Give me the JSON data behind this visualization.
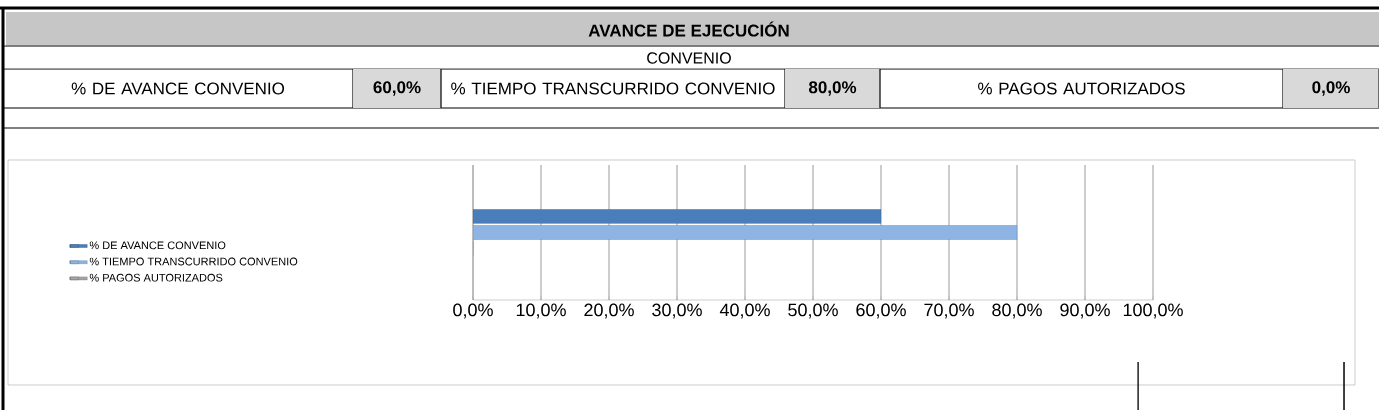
{
  "chart_data": {
    "type": "bar",
    "orientation": "horizontal",
    "title": "AVANCE DE EJECUCIÓN",
    "subtitle": "CONVENIO",
    "annotations": [
      "% DE AVANCE CONVENIO",
      "60,0%",
      "% TIEMPO TRANSCURRIDO CONVENIO",
      "80,0%",
      "% PAGOS AUTORIZADOS",
      "0,0%"
    ],
    "categories": [
      null
    ],
    "series": [
      {
        "name": "% DE AVANCE CONVENIO",
        "color": "#4a7ebb",
        "values": [
          60
        ]
      },
      {
        "name": "% TIEMPO TRANSCURRIDO CONVENIO",
        "color": "#8eb4e3",
        "values": [
          80
        ]
      },
      {
        "name": "% PAGOS AUTORIZADOS",
        "color": "#a6a6a6",
        "values": [
          0
        ]
      }
    ],
    "xlim": [
      0,
      100
    ],
    "xticks": [
      {
        "value": 0,
        "label": "0,0%"
      },
      {
        "value": 10,
        "label": "10,0%"
      },
      {
        "value": 20,
        "label": "20,0%"
      },
      {
        "value": 30,
        "label": "30,0%"
      },
      {
        "value": 40,
        "label": "40,0%"
      },
      {
        "value": 50,
        "label": "50,0%"
      },
      {
        "value": 60,
        "label": "60,0%"
      },
      {
        "value": 70,
        "label": "70,0%"
      },
      {
        "value": 80,
        "label": "80,0%"
      },
      {
        "value": 90,
        "label": "90,0%"
      },
      {
        "value": 100,
        "label": "100,0%"
      }
    ],
    "grid": "x",
    "legend": "left"
  }
}
